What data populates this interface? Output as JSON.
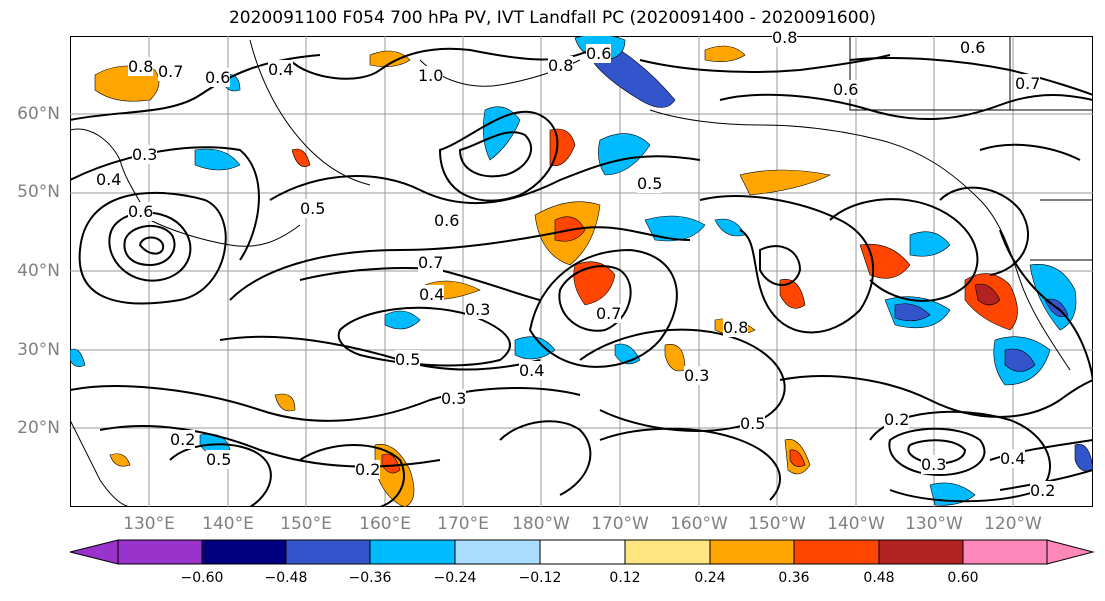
{
  "figure": {
    "title": "2020091100 F054 700 hPa PV, IVT Landfall PC (2020091400 - 2020091600)"
  },
  "axes": {
    "lat_labels": [
      "60°N",
      "50°N",
      "40°N",
      "30°N",
      "20°N"
    ],
    "lon_labels": [
      "130°E",
      "140°E",
      "150°E",
      "160°E",
      "170°E",
      "180°W",
      "170°W",
      "160°W",
      "150°W",
      "140°W",
      "130°W",
      "120°W"
    ]
  },
  "contour_labels": [
    {
      "text": "0.8"
    },
    {
      "text": "0.7"
    },
    {
      "text": "0.6"
    },
    {
      "text": "0.4"
    },
    {
      "text": "1.0"
    },
    {
      "text": "0.6"
    },
    {
      "text": "0.8"
    },
    {
      "text": "0.8"
    },
    {
      "text": "0.6"
    },
    {
      "text": "0.6"
    },
    {
      "text": "0.7"
    },
    {
      "text": "0.3"
    },
    {
      "text": "0.4"
    },
    {
      "text": "0.5"
    },
    {
      "text": "0.6"
    },
    {
      "text": "0.5"
    },
    {
      "text": "0.6"
    },
    {
      "text": "0.7"
    },
    {
      "text": "0.4"
    },
    {
      "text": "0.3"
    },
    {
      "text": "0.5"
    },
    {
      "text": "0.4"
    },
    {
      "text": "0.3"
    },
    {
      "text": "0.3"
    },
    {
      "text": "0.5"
    },
    {
      "text": "0.2"
    },
    {
      "text": "0.2"
    },
    {
      "text": "0.2"
    },
    {
      "text": "0.4"
    },
    {
      "text": "0.2"
    },
    {
      "text": "0.3"
    },
    {
      "text": "0.7"
    },
    {
      "text": "0.5"
    },
    {
      "text": "0.8"
    }
  ],
  "colorbar": {
    "colors": [
      "#9933cc",
      "#000080",
      "#3355cc",
      "#00bbff",
      "#aaddff",
      "#ffffff",
      "#ffe680",
      "#ffa500",
      "#ff4500",
      "#b22222",
      "#ff88bb"
    ],
    "ticks": [
      "−0.60",
      "−0.48",
      "−0.36",
      "−0.24",
      "−0.12",
      "0.12",
      "0.24",
      "0.36",
      "0.48",
      "0.60"
    ]
  },
  "colors": {
    "grid": "#999999",
    "contour": "#000000",
    "axis_text": "#808080"
  }
}
